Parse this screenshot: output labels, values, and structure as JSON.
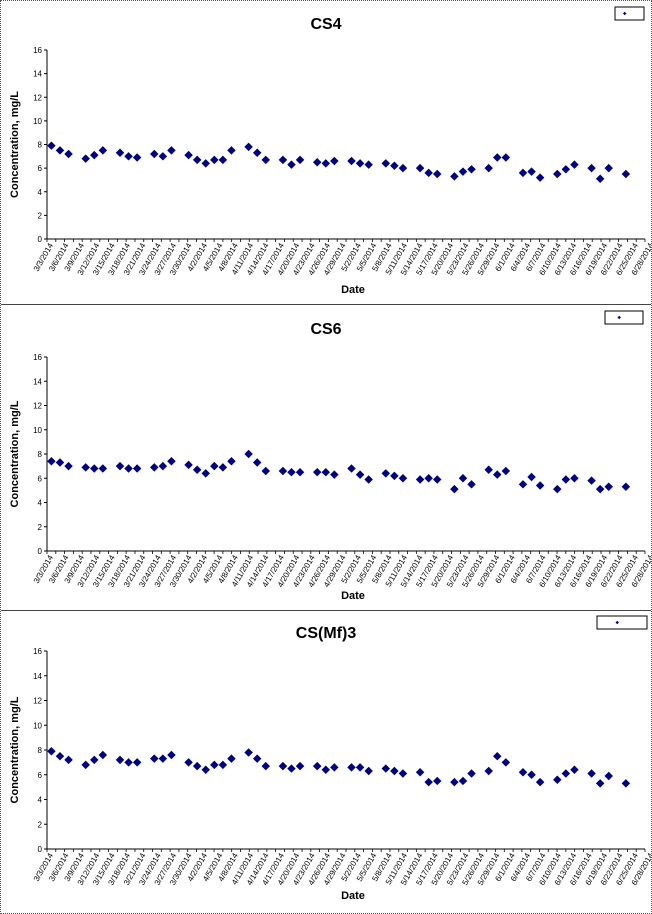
{
  "charts": [
    {
      "chart_data": {
        "type": "scatter",
        "title": "CS4",
        "xlabel": "Date",
        "ylabel": "Concentration, mg/L",
        "ylim": [
          0,
          16
        ],
        "yticks": [
          0,
          2,
          4,
          6,
          8,
          10,
          12,
          14,
          16
        ],
        "grid": false,
        "legend": "top-right",
        "marker_color": "#000080",
        "xtick_labels": [
          "3/3/2014",
          "3/6/2014",
          "3/9/2014",
          "3/12/2014",
          "3/15/2014",
          "3/18/2014",
          "3/21/2014",
          "3/24/2014",
          "3/27/2014",
          "3/30/2014",
          "4/2/2014",
          "4/5/2014",
          "4/8/2014",
          "4/11/2014",
          "4/14/2014",
          "4/17/2014",
          "4/20/2014",
          "4/23/2014",
          "4/26/2014",
          "4/29/2014",
          "5/2/2014",
          "5/5/2014",
          "5/8/2014",
          "5/11/2014",
          "5/14/2014",
          "5/17/2014",
          "5/20/2014",
          "5/23/2014",
          "5/26/2014",
          "5/29/2014",
          "6/1/2014",
          "6/4/2014",
          "6/7/2014",
          "6/10/2014",
          "6/13/2014",
          "6/16/2014",
          "6/19/2014",
          "6/22/2014",
          "6/25/2014",
          "6/28/2014"
        ],
        "series": [
          {
            "points": [
              [
                0,
                7.9
              ],
              [
                1,
                7.5
              ],
              [
                2,
                7.2
              ],
              [
                4,
                6.8
              ],
              [
                5,
                7.1
              ],
              [
                6,
                7.5
              ],
              [
                8,
                7.3
              ],
              [
                9,
                7.0
              ],
              [
                10,
                6.9
              ],
              [
                12,
                7.2
              ],
              [
                13,
                7.0
              ],
              [
                14,
                7.5
              ],
              [
                16,
                7.1
              ],
              [
                17,
                6.7
              ],
              [
                18,
                6.4
              ],
              [
                19,
                6.7
              ],
              [
                20,
                6.7
              ],
              [
                21,
                7.5
              ],
              [
                23,
                7.8
              ],
              [
                24,
                7.3
              ],
              [
                25,
                6.7
              ],
              [
                27,
                6.7
              ],
              [
                28,
                6.3
              ],
              [
                29,
                6.7
              ],
              [
                31,
                6.5
              ],
              [
                32,
                6.4
              ],
              [
                33,
                6.6
              ],
              [
                35,
                6.6
              ],
              [
                36,
                6.4
              ],
              [
                37,
                6.3
              ],
              [
                39,
                6.4
              ],
              [
                40,
                6.2
              ],
              [
                41,
                6.0
              ],
              [
                43,
                6.0
              ],
              [
                44,
                5.6
              ],
              [
                45,
                5.5
              ],
              [
                47,
                5.3
              ],
              [
                48,
                5.7
              ],
              [
                49,
                5.9
              ],
              [
                51,
                6.0
              ],
              [
                52,
                6.9
              ],
              [
                53,
                6.9
              ],
              [
                55,
                5.6
              ],
              [
                56,
                5.7
              ],
              [
                57,
                5.2
              ],
              [
                59,
                5.5
              ],
              [
                60,
                5.9
              ],
              [
                61,
                6.3
              ],
              [
                63,
                6.0
              ],
              [
                64,
                5.1
              ],
              [
                65,
                6.0
              ],
              [
                67,
                5.5
              ]
            ]
          }
        ]
      }
    },
    {
      "chart_data": {
        "type": "scatter",
        "title": "CS6",
        "xlabel": "Date",
        "ylabel": "Concentration, mg/L",
        "ylim": [
          0,
          16
        ],
        "yticks": [
          0,
          2,
          4,
          6,
          8,
          10,
          12,
          14,
          16
        ],
        "grid": false,
        "legend": "top-right",
        "marker_color": "#000080",
        "xtick_labels": [
          "3/3/2014",
          "3/6/2014",
          "3/9/2014",
          "3/12/2014",
          "3/15/2014",
          "3/18/2014",
          "3/21/2014",
          "3/24/2014",
          "3/27/2014",
          "3/30/2014",
          "4/2/2014",
          "4/5/2014",
          "4/8/2014",
          "4/11/2014",
          "4/14/2014",
          "4/17/2014",
          "4/20/2014",
          "4/23/2014",
          "4/26/2014",
          "4/29/2014",
          "5/2/2014",
          "5/5/2014",
          "5/8/2014",
          "5/11/2014",
          "5/14/2014",
          "5/17/2014",
          "5/20/2014",
          "5/23/2014",
          "5/26/2014",
          "5/29/2014",
          "6/1/2014",
          "6/4/2014",
          "6/7/2014",
          "6/10/2014",
          "6/13/2014",
          "6/16/2014",
          "6/19/2014",
          "6/22/2014",
          "6/25/2014",
          "6/28/2014"
        ],
        "series": [
          {
            "points": [
              [
                0,
                7.4
              ],
              [
                1,
                7.3
              ],
              [
                2,
                7.0
              ],
              [
                4,
                6.9
              ],
              [
                5,
                6.8
              ],
              [
                6,
                6.8
              ],
              [
                8,
                7.0
              ],
              [
                9,
                6.8
              ],
              [
                10,
                6.8
              ],
              [
                12,
                6.9
              ],
              [
                13,
                7.0
              ],
              [
                14,
                7.4
              ],
              [
                16,
                7.1
              ],
              [
                17,
                6.7
              ],
              [
                18,
                6.4
              ],
              [
                19,
                7.0
              ],
              [
                20,
                6.9
              ],
              [
                21,
                7.4
              ],
              [
                23,
                8.0
              ],
              [
                24,
                7.3
              ],
              [
                25,
                6.6
              ],
              [
                27,
                6.6
              ],
              [
                28,
                6.5
              ],
              [
                29,
                6.5
              ],
              [
                31,
                6.5
              ],
              [
                32,
                6.5
              ],
              [
                33,
                6.3
              ],
              [
                35,
                6.8
              ],
              [
                36,
                6.3
              ],
              [
                37,
                5.9
              ],
              [
                39,
                6.4
              ],
              [
                40,
                6.2
              ],
              [
                41,
                6.0
              ],
              [
                43,
                5.9
              ],
              [
                44,
                6.0
              ],
              [
                45,
                5.9
              ],
              [
                47,
                5.1
              ],
              [
                48,
                6.0
              ],
              [
                49,
                5.5
              ],
              [
                51,
                6.7
              ],
              [
                52,
                6.3
              ],
              [
                53,
                6.6
              ],
              [
                55,
                5.5
              ],
              [
                56,
                6.1
              ],
              [
                57,
                5.4
              ],
              [
                59,
                5.1
              ],
              [
                60,
                5.9
              ],
              [
                61,
                6.0
              ],
              [
                63,
                5.8
              ],
              [
                64,
                5.1
              ],
              [
                65,
                5.3
              ],
              [
                67,
                5.3
              ]
            ]
          }
        ]
      }
    },
    {
      "chart_data": {
        "type": "scatter",
        "title": "CS(Mf)3",
        "xlabel": "Date",
        "ylabel": "Concentration, mg/L",
        "ylim": [
          0,
          16
        ],
        "yticks": [
          0,
          2,
          4,
          6,
          8,
          10,
          12,
          14,
          16
        ],
        "grid": false,
        "legend": "top-right",
        "marker_color": "#000080",
        "xtick_labels": [
          "3/3/2014",
          "3/6/2014",
          "3/9/2014",
          "3/12/2014",
          "3/15/2014",
          "3/18/2014",
          "3/21/2014",
          "3/24/2014",
          "3/27/2014",
          "3/30/2014",
          "4/2/2014",
          "4/5/2014",
          "4/8/2014",
          "4/11/2014",
          "4/14/2014",
          "4/17/2014",
          "4/20/2014",
          "4/23/2014",
          "4/26/2014",
          "4/29/2014",
          "5/2/2014",
          "5/5/2014",
          "5/8/2014",
          "5/11/2014",
          "5/14/2014",
          "5/17/2014",
          "5/20/2014",
          "5/23/2014",
          "5/26/2014",
          "5/29/2014",
          "6/1/2014",
          "6/4/2014",
          "6/7/2014",
          "6/10/2014",
          "6/13/2014",
          "6/16/2014",
          "6/19/2014",
          "6/22/2014",
          "6/25/2014",
          "6/28/2014"
        ],
        "series": [
          {
            "points": [
              [
                0,
                7.9
              ],
              [
                1,
                7.5
              ],
              [
                2,
                7.2
              ],
              [
                4,
                6.8
              ],
              [
                5,
                7.2
              ],
              [
                6,
                7.6
              ],
              [
                8,
                7.2
              ],
              [
                9,
                7.0
              ],
              [
                10,
                7.0
              ],
              [
                12,
                7.3
              ],
              [
                13,
                7.3
              ],
              [
                14,
                7.6
              ],
              [
                16,
                7.0
              ],
              [
                17,
                6.7
              ],
              [
                18,
                6.4
              ],
              [
                19,
                6.8
              ],
              [
                20,
                6.8
              ],
              [
                21,
                7.3
              ],
              [
                23,
                7.8
              ],
              [
                24,
                7.3
              ],
              [
                25,
                6.7
              ],
              [
                27,
                6.7
              ],
              [
                28,
                6.5
              ],
              [
                29,
                6.7
              ],
              [
                31,
                6.7
              ],
              [
                32,
                6.4
              ],
              [
                33,
                6.6
              ],
              [
                35,
                6.6
              ],
              [
                36,
                6.6
              ],
              [
                37,
                6.3
              ],
              [
                39,
                6.5
              ],
              [
                40,
                6.3
              ],
              [
                41,
                6.1
              ],
              [
                43,
                6.2
              ],
              [
                44,
                5.4
              ],
              [
                45,
                5.5
              ],
              [
                47,
                5.4
              ],
              [
                48,
                5.5
              ],
              [
                49,
                6.1
              ],
              [
                51,
                6.3
              ],
              [
                52,
                7.5
              ],
              [
                53,
                7.0
              ],
              [
                55,
                6.2
              ],
              [
                56,
                6.0
              ],
              [
                57,
                5.4
              ],
              [
                59,
                5.6
              ],
              [
                60,
                6.1
              ],
              [
                61,
                6.4
              ],
              [
                63,
                6.1
              ],
              [
                64,
                5.3
              ],
              [
                65,
                5.9
              ],
              [
                67,
                5.3
              ]
            ]
          }
        ]
      }
    }
  ]
}
